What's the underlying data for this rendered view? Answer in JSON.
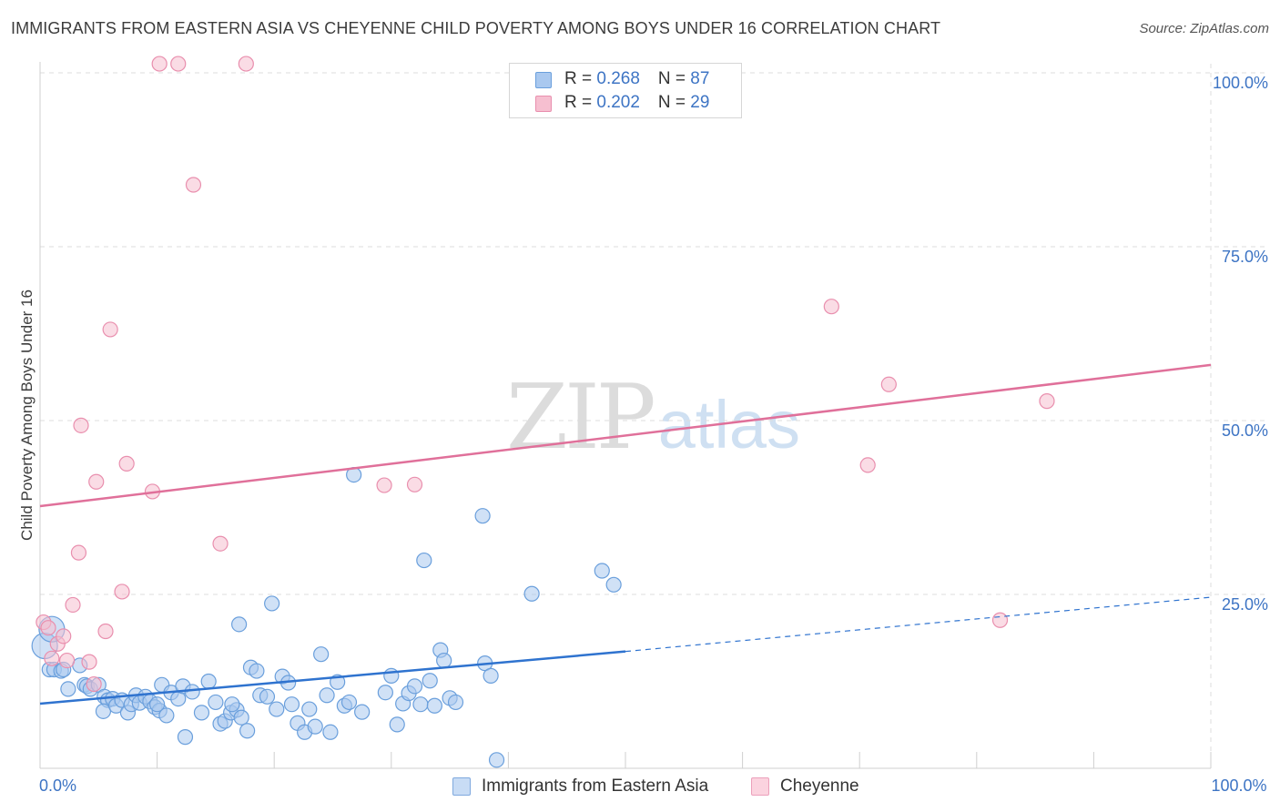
{
  "title": "IMMIGRANTS FROM EASTERN ASIA VS CHEYENNE CHILD POVERTY AMONG BOYS UNDER 16 CORRELATION CHART",
  "source": "Source: ZipAtlas.com",
  "watermark": {
    "zip": "ZIP",
    "atlas": "atlas"
  },
  "stats_legend": [
    {
      "r_label": "R = ",
      "r_value": "0.268",
      "n_label": "N = ",
      "n_value": "87"
    },
    {
      "r_label": "R = ",
      "r_value": "0.202",
      "n_label": "N = ",
      "n_value": "29"
    }
  ],
  "colors": {
    "blue_fill": "#a9c8ef",
    "blue_stroke": "#6a9fdc",
    "blue_line": "#2f73cf",
    "pink_fill": "#f6bfd0",
    "pink_stroke": "#e98fae",
    "pink_line": "#e0709a",
    "tick_text": "#3d74c4",
    "grid": "#dcdcdc"
  },
  "chart_data": {
    "type": "scatter",
    "title": "IMMIGRANTS FROM EASTERN ASIA VS CHEYENNE CHILD POVERTY AMONG BOYS UNDER 16 CORRELATION CHART",
    "xlabel": "",
    "ylabel": "Child Poverty Among Boys Under 16",
    "xlim": [
      0,
      100
    ],
    "ylim": [
      0,
      100
    ],
    "x_tick_labels": [
      {
        "value": 0,
        "label": "0.0%"
      },
      {
        "value": 100,
        "label": "100.0%"
      }
    ],
    "y_tick_labels": [
      {
        "value": 25,
        "label": "25.0%"
      },
      {
        "value": 50,
        "label": "50.0%"
      },
      {
        "value": 75,
        "label": "75.0%"
      },
      {
        "value": 100,
        "label": "100.0%"
      }
    ],
    "grid": true,
    "legend_position": "bottom-center",
    "series": [
      {
        "name": "Immigrants from Eastern Asia",
        "color": "#a9c8ef",
        "trend": {
          "x0": 0,
          "y0": 9.3,
          "x1": 50,
          "y1": 16.8,
          "dashed_to": 100,
          "dashed_y": 24.6
        },
        "points": [
          [
            0.4,
            17.6
          ],
          [
            0.8,
            14.2
          ],
          [
            1.2,
            14.2
          ],
          [
            1.8,
            14.0
          ],
          [
            2.0,
            14.2
          ],
          [
            2.4,
            11.4
          ],
          [
            3.4,
            14.8
          ],
          [
            3.8,
            12.0
          ],
          [
            4.0,
            11.8
          ],
          [
            4.3,
            11.4
          ],
          [
            5.0,
            12.0
          ],
          [
            5.5,
            10.3
          ],
          [
            5.8,
            9.8
          ],
          [
            6.2,
            10.0
          ],
          [
            5.4,
            8.2
          ],
          [
            6.5,
            9.0
          ],
          [
            7.0,
            9.8
          ],
          [
            7.5,
            8.0
          ],
          [
            7.8,
            9.2
          ],
          [
            8.2,
            10.5
          ],
          [
            8.5,
            9.4
          ],
          [
            9.0,
            10.3
          ],
          [
            9.4,
            9.6
          ],
          [
            9.8,
            8.8
          ],
          [
            10.2,
            8.3
          ],
          [
            10.4,
            12.0
          ],
          [
            10.8,
            7.6
          ],
          [
            11.2,
            10.9
          ],
          [
            11.8,
            10.0
          ],
          [
            12.2,
            11.8
          ],
          [
            13.0,
            11.0
          ],
          [
            13.8,
            8.0
          ],
          [
            14.4,
            12.5
          ],
          [
            15.0,
            9.5
          ],
          [
            15.4,
            6.4
          ],
          [
            15.8,
            6.8
          ],
          [
            16.3,
            8.0
          ],
          [
            16.8,
            8.4
          ],
          [
            16.4,
            9.2
          ],
          [
            17.2,
            7.3
          ],
          [
            17.7,
            5.4
          ],
          [
            17.0,
            20.7
          ],
          [
            18.0,
            14.5
          ],
          [
            18.5,
            14.0
          ],
          [
            18.8,
            10.5
          ],
          [
            19.4,
            10.3
          ],
          [
            19.8,
            23.7
          ],
          [
            20.2,
            8.5
          ],
          [
            20.7,
            13.2
          ],
          [
            21.2,
            12.3
          ],
          [
            21.5,
            9.2
          ],
          [
            22.0,
            6.5
          ],
          [
            22.6,
            5.2
          ],
          [
            23.0,
            8.5
          ],
          [
            23.5,
            6.0
          ],
          [
            24.0,
            16.4
          ],
          [
            24.5,
            10.5
          ],
          [
            24.8,
            5.2
          ],
          [
            25.4,
            12.4
          ],
          [
            26.0,
            9.0
          ],
          [
            26.4,
            9.5
          ],
          [
            26.8,
            42.2
          ],
          [
            27.5,
            8.1
          ],
          [
            29.5,
            10.9
          ],
          [
            30.0,
            13.3
          ],
          [
            30.5,
            6.3
          ],
          [
            31.0,
            9.3
          ],
          [
            31.5,
            10.8
          ],
          [
            32.0,
            11.8
          ],
          [
            32.5,
            9.2
          ],
          [
            32.8,
            29.9
          ],
          [
            33.3,
            12.6
          ],
          [
            33.7,
            9.0
          ],
          [
            34.2,
            17.0
          ],
          [
            34.5,
            15.5
          ],
          [
            35.0,
            10.1
          ],
          [
            35.5,
            9.5
          ],
          [
            37.8,
            36.3
          ],
          [
            38.0,
            15.1
          ],
          [
            38.5,
            13.3
          ],
          [
            39.0,
            1.2
          ],
          [
            42.0,
            25.1
          ],
          [
            48.0,
            28.4
          ],
          [
            49.0,
            26.4
          ],
          [
            1.0,
            20.0
          ],
          [
            10.0,
            9.2
          ],
          [
            12.4,
            4.5
          ]
        ]
      },
      {
        "name": "Cheyenne",
        "color": "#f6bfd0",
        "trend": {
          "x0": 0,
          "y0": 37.7,
          "x1": 100,
          "y1": 58.0
        },
        "points": [
          [
            0.3,
            21.0
          ],
          [
            0.7,
            20.2
          ],
          [
            1.0,
            15.8
          ],
          [
            1.5,
            17.9
          ],
          [
            2.0,
            19.0
          ],
          [
            2.3,
            15.5
          ],
          [
            2.8,
            23.5
          ],
          [
            3.3,
            31.0
          ],
          [
            3.5,
            49.3
          ],
          [
            4.2,
            15.3
          ],
          [
            4.6,
            12.1
          ],
          [
            4.8,
            41.2
          ],
          [
            5.6,
            19.7
          ],
          [
            6.0,
            63.1
          ],
          [
            7.0,
            25.4
          ],
          [
            7.4,
            43.8
          ],
          [
            9.6,
            39.8
          ],
          [
            10.2,
            101.3
          ],
          [
            11.8,
            101.3
          ],
          [
            13.1,
            83.9
          ],
          [
            15.4,
            32.3
          ],
          [
            17.6,
            101.3
          ],
          [
            29.4,
            40.7
          ],
          [
            32.0,
            40.8
          ],
          [
            67.6,
            66.4
          ],
          [
            70.7,
            43.6
          ],
          [
            72.5,
            55.2
          ],
          [
            82.0,
            21.3
          ],
          [
            86.0,
            52.8
          ]
        ]
      }
    ]
  },
  "legend": [
    {
      "label": "Immigrants from Eastern Asia"
    },
    {
      "label": "Cheyenne"
    }
  ]
}
